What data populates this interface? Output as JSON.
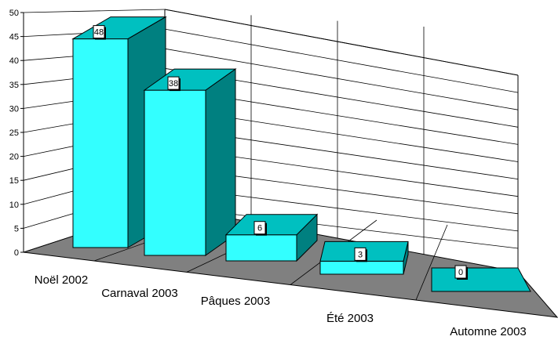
{
  "chart_data": {
    "type": "bar",
    "categories": [
      "Noël 2002",
      "Carnaval 2003",
      "Pâques 2003",
      "Été 2003",
      "Automne 2003"
    ],
    "values": [
      48,
      38,
      6,
      3,
      0
    ],
    "ylim": [
      0,
      50
    ],
    "yticks": [
      0,
      5,
      10,
      15,
      20,
      25,
      30,
      35,
      40,
      45,
      50
    ],
    "grid": true,
    "three_d": true,
    "data_labels": true,
    "colors": {
      "front": "#33ffff",
      "side": "#008080",
      "top": "#00c0c0",
      "floor": "#808080",
      "grid": "#000000"
    }
  }
}
